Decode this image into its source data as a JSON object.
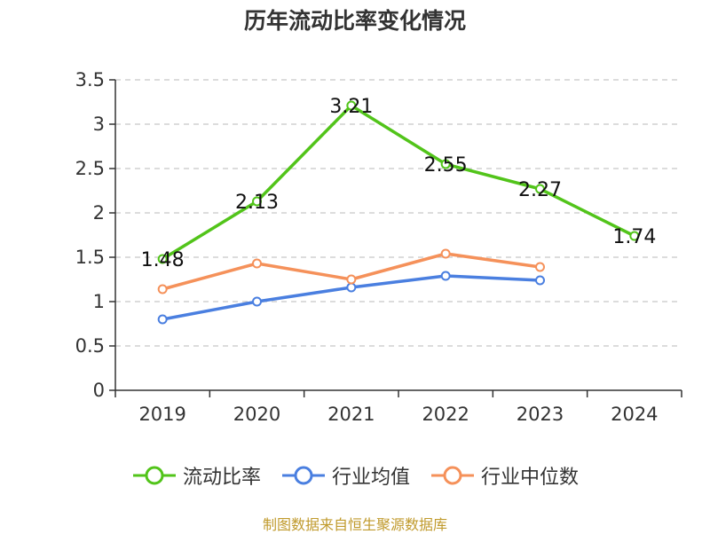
{
  "page": {
    "title": "历年流动比率变化情况",
    "source": "制图数据来自恒生聚源数据库",
    "source_color": "#c09a2c"
  },
  "chart_data": {
    "type": "line",
    "title": "历年流动比率变化情况",
    "xlabel": "",
    "ylabel": "",
    "categories": [
      "2019",
      "2020",
      "2021",
      "2022",
      "2023",
      "2024"
    ],
    "ylim": [
      0,
      3.5
    ],
    "yticks": [
      "0",
      "0.5",
      "1",
      "1.5",
      "2",
      "2.5",
      "3",
      "3.5"
    ],
    "grid": true,
    "legend_position": "bottom",
    "series": [
      {
        "name": "流动比率",
        "color": "#52c41a",
        "values": [
          1.48,
          2.13,
          3.21,
          2.55,
          2.27,
          1.74
        ],
        "labels": [
          "1.48",
          "2.13",
          "3.21",
          "2.55",
          "2.27",
          "1.74"
        ]
      },
      {
        "name": "行业均值",
        "color": "#4a7fe0",
        "values": [
          0.8,
          1.0,
          1.16,
          1.29,
          1.24,
          null
        ]
      },
      {
        "name": "行业中位数",
        "color": "#f5915a",
        "values": [
          1.14,
          1.43,
          1.25,
          1.54,
          1.39,
          null
        ]
      }
    ]
  }
}
